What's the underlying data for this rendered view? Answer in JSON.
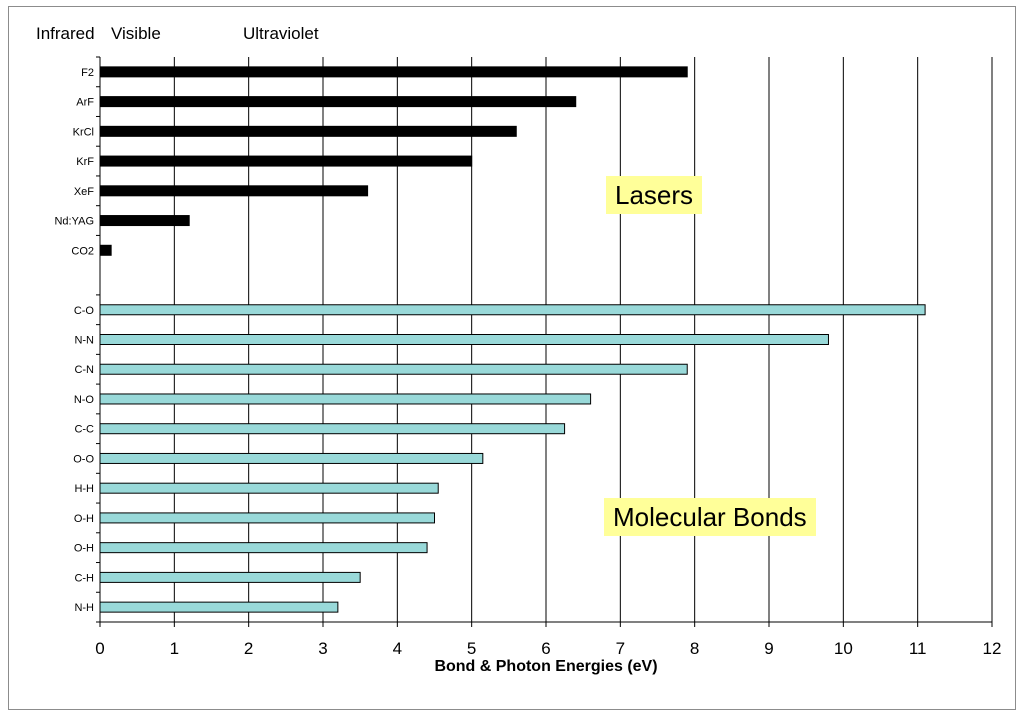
{
  "chart_data": {
    "type": "bar",
    "orientation": "horizontal",
    "xlabel": "Bond & Photon Energies (eV)",
    "xlim": [
      0,
      12
    ],
    "xticks": [
      0,
      1,
      2,
      3,
      4,
      5,
      6,
      7,
      8,
      9,
      10,
      11,
      12
    ],
    "grid": "vertical gridlines",
    "band_labels": [
      "Infrared",
      "Visible",
      "Ultraviolet"
    ],
    "annotations": [
      "Lasers",
      "Molecular Bonds"
    ],
    "groups": [
      {
        "name": "Lasers",
        "color": "#000000",
        "items": [
          {
            "label": "F2",
            "value": 7.9
          },
          {
            "label": "ArF",
            "value": 6.4
          },
          {
            "label": "KrCl",
            "value": 5.6
          },
          {
            "label": "KrF",
            "value": 5.0
          },
          {
            "label": "XeF",
            "value": 3.6
          },
          {
            "label": "Nd:YAG",
            "value": 1.2
          },
          {
            "label": "CO2",
            "value": 0.15
          }
        ]
      },
      {
        "name": "Molecular Bonds",
        "color": "#99d9d9",
        "items": [
          {
            "label": "C-O",
            "value": 11.1
          },
          {
            "label": "N-N",
            "value": 9.8
          },
          {
            "label": "C-N",
            "value": 7.9
          },
          {
            "label": "N-O",
            "value": 6.6
          },
          {
            "label": "C-C",
            "value": 6.25
          },
          {
            "label": "O-O",
            "value": 5.15
          },
          {
            "label": "H-H",
            "value": 4.55
          },
          {
            "label": "O-H",
            "value": 4.5
          },
          {
            "label": "O-H",
            "value": 4.4
          },
          {
            "label": "C-H",
            "value": 3.5
          },
          {
            "label": "N-H",
            "value": 3.2
          }
        ]
      }
    ]
  }
}
